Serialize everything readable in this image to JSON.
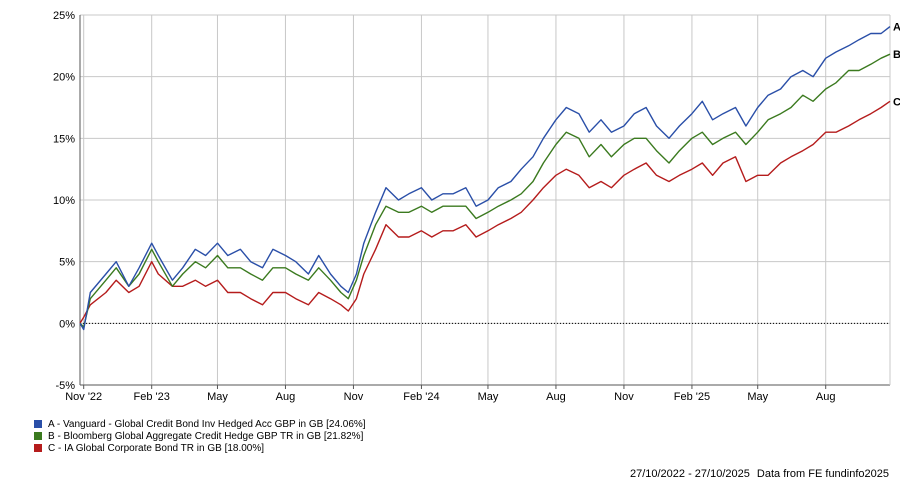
{
  "colors": {
    "A": "#2a4fa8",
    "B": "#3b7a1f",
    "C": "#b51c1c",
    "grid": "#c8c8c8",
    "axis": "#555555"
  },
  "legend": [
    {
      "key": "A",
      "label": "A - Vanguard - Global Credit Bond Inv Hedged Acc GBP in GB [24.06%]"
    },
    {
      "key": "B",
      "label": "B - Bloomberg Global Aggregate Credit Hedge GBP TR in GB [21.82%]"
    },
    {
      "key": "C",
      "label": "C - IA Global Corporate Bond TR in GB [18.00%]"
    }
  ],
  "footer": {
    "range": "27/10/2022 - 27/10/2025",
    "source": "Data from FE fundinfo2025"
  },
  "chart_data": {
    "type": "line",
    "ylim": [
      -5,
      25
    ],
    "yticks": [
      "25%",
      "20%",
      "15%",
      "10%",
      "5%",
      "0%",
      "-5%"
    ],
    "ytick_values": [
      25,
      20,
      15,
      10,
      5,
      0,
      -5
    ],
    "xlim": [
      "2022-10-27",
      "2025-10-27"
    ],
    "xticks": [
      {
        "label": "Nov '22",
        "date": "2022-11-01"
      },
      {
        "label": "Feb '23",
        "date": "2023-02-01"
      },
      {
        "label": "May",
        "date": "2023-05-01"
      },
      {
        "label": "Aug",
        "date": "2023-08-01"
      },
      {
        "label": "Nov",
        "date": "2023-11-01"
      },
      {
        "label": "Feb '24",
        "date": "2024-02-01"
      },
      {
        "label": "May",
        "date": "2024-05-01"
      },
      {
        "label": "Aug",
        "date": "2024-08-01"
      },
      {
        "label": "Nov",
        "date": "2024-11-01"
      },
      {
        "label": "Feb '25",
        "date": "2025-02-01"
      },
      {
        "label": "May",
        "date": "2025-05-01"
      },
      {
        "label": "Aug",
        "date": "2025-08-01"
      }
    ],
    "zero_line": true,
    "grid": true,
    "series": [
      {
        "name": "A",
        "end_label": "A",
        "color": "#2a4fa8",
        "points": [
          [
            "2022-10-27",
            0
          ],
          [
            "2022-11-01",
            -0.5
          ],
          [
            "2022-11-10",
            2.5
          ],
          [
            "2022-12-01",
            4
          ],
          [
            "2022-12-15",
            5
          ],
          [
            "2023-01-01",
            3
          ],
          [
            "2023-01-15",
            4.5
          ],
          [
            "2023-02-01",
            6.5
          ],
          [
            "2023-02-10",
            5.5
          ],
          [
            "2023-03-01",
            3.5
          ],
          [
            "2023-03-15",
            4.5
          ],
          [
            "2023-04-01",
            6
          ],
          [
            "2023-04-15",
            5.5
          ],
          [
            "2023-05-01",
            6.5
          ],
          [
            "2023-05-15",
            5.5
          ],
          [
            "2023-06-01",
            6
          ],
          [
            "2023-06-15",
            5
          ],
          [
            "2023-07-01",
            4.5
          ],
          [
            "2023-07-15",
            6
          ],
          [
            "2023-08-01",
            5.5
          ],
          [
            "2023-08-15",
            5
          ],
          [
            "2023-09-01",
            4
          ],
          [
            "2023-09-15",
            5.5
          ],
          [
            "2023-10-01",
            4
          ],
          [
            "2023-10-15",
            3
          ],
          [
            "2023-10-25",
            2.5
          ],
          [
            "2023-11-05",
            4
          ],
          [
            "2023-11-15",
            6.5
          ],
          [
            "2023-12-01",
            9
          ],
          [
            "2023-12-15",
            11
          ],
          [
            "2024-01-01",
            10
          ],
          [
            "2024-01-15",
            10.5
          ],
          [
            "2024-02-01",
            11
          ],
          [
            "2024-02-15",
            10
          ],
          [
            "2024-03-01",
            10.5
          ],
          [
            "2024-03-15",
            10.5
          ],
          [
            "2024-04-01",
            11
          ],
          [
            "2024-04-15",
            9.5
          ],
          [
            "2024-05-01",
            10
          ],
          [
            "2024-05-15",
            11
          ],
          [
            "2024-06-01",
            11.5
          ],
          [
            "2024-06-15",
            12.5
          ],
          [
            "2024-07-01",
            13.5
          ],
          [
            "2024-07-15",
            15
          ],
          [
            "2024-08-01",
            16.5
          ],
          [
            "2024-08-15",
            17.5
          ],
          [
            "2024-09-01",
            17
          ],
          [
            "2024-09-15",
            15.5
          ],
          [
            "2024-10-01",
            16.5
          ],
          [
            "2024-10-15",
            15.5
          ],
          [
            "2024-11-01",
            16
          ],
          [
            "2024-11-15",
            17
          ],
          [
            "2024-12-01",
            17.5
          ],
          [
            "2024-12-15",
            16
          ],
          [
            "2025-01-01",
            15
          ],
          [
            "2025-01-15",
            16
          ],
          [
            "2025-02-01",
            17
          ],
          [
            "2025-02-15",
            18
          ],
          [
            "2025-03-01",
            16.5
          ],
          [
            "2025-03-15",
            17
          ],
          [
            "2025-04-01",
            17.5
          ],
          [
            "2025-04-15",
            16
          ],
          [
            "2025-05-01",
            17.5
          ],
          [
            "2025-05-15",
            18.5
          ],
          [
            "2025-06-01",
            19
          ],
          [
            "2025-06-15",
            20
          ],
          [
            "2025-07-01",
            20.5
          ],
          [
            "2025-07-15",
            20
          ],
          [
            "2025-08-01",
            21.5
          ],
          [
            "2025-08-15",
            22
          ],
          [
            "2025-09-01",
            22.5
          ],
          [
            "2025-09-15",
            23
          ],
          [
            "2025-10-01",
            23.5
          ],
          [
            "2025-10-15",
            23.5
          ],
          [
            "2025-10-27",
            24.06
          ]
        ]
      },
      {
        "name": "B",
        "end_label": "B",
        "color": "#3b7a1f",
        "points": [
          [
            "2022-10-27",
            0
          ],
          [
            "2022-11-01",
            -0.3
          ],
          [
            "2022-11-10",
            2
          ],
          [
            "2022-12-01",
            3.5
          ],
          [
            "2022-12-15",
            4.5
          ],
          [
            "2023-01-01",
            3
          ],
          [
            "2023-01-15",
            4
          ],
          [
            "2023-02-01",
            6
          ],
          [
            "2023-02-10",
            5
          ],
          [
            "2023-03-01",
            3
          ],
          [
            "2023-03-15",
            4
          ],
          [
            "2023-04-01",
            5
          ],
          [
            "2023-04-15",
            4.5
          ],
          [
            "2023-05-01",
            5.5
          ],
          [
            "2023-05-15",
            4.5
          ],
          [
            "2023-06-01",
            4.5
          ],
          [
            "2023-06-15",
            4
          ],
          [
            "2023-07-01",
            3.5
          ],
          [
            "2023-07-15",
            4.5
          ],
          [
            "2023-08-01",
            4.5
          ],
          [
            "2023-08-15",
            4
          ],
          [
            "2023-09-01",
            3.5
          ],
          [
            "2023-09-15",
            4.5
          ],
          [
            "2023-10-01",
            3.5
          ],
          [
            "2023-10-15",
            2.5
          ],
          [
            "2023-10-25",
            2
          ],
          [
            "2023-11-05",
            3.5
          ],
          [
            "2023-11-15",
            5.5
          ],
          [
            "2023-12-01",
            8
          ],
          [
            "2023-12-15",
            9.5
          ],
          [
            "2024-01-01",
            9
          ],
          [
            "2024-01-15",
            9
          ],
          [
            "2024-02-01",
            9.5
          ],
          [
            "2024-02-15",
            9
          ],
          [
            "2024-03-01",
            9.5
          ],
          [
            "2024-03-15",
            9.5
          ],
          [
            "2024-04-01",
            9.5
          ],
          [
            "2024-04-15",
            8.5
          ],
          [
            "2024-05-01",
            9
          ],
          [
            "2024-05-15",
            9.5
          ],
          [
            "2024-06-01",
            10
          ],
          [
            "2024-06-15",
            10.5
          ],
          [
            "2024-07-01",
            11.5
          ],
          [
            "2024-07-15",
            13
          ],
          [
            "2024-08-01",
            14.5
          ],
          [
            "2024-08-15",
            15.5
          ],
          [
            "2024-09-01",
            15
          ],
          [
            "2024-09-15",
            13.5
          ],
          [
            "2024-10-01",
            14.5
          ],
          [
            "2024-10-15",
            13.5
          ],
          [
            "2024-11-01",
            14.5
          ],
          [
            "2024-11-15",
            15
          ],
          [
            "2024-12-01",
            15
          ],
          [
            "2024-12-15",
            14
          ],
          [
            "2025-01-01",
            13
          ],
          [
            "2025-01-15",
            14
          ],
          [
            "2025-02-01",
            15
          ],
          [
            "2025-02-15",
            15.5
          ],
          [
            "2025-03-01",
            14.5
          ],
          [
            "2025-03-15",
            15
          ],
          [
            "2025-04-01",
            15.5
          ],
          [
            "2025-04-15",
            14.5
          ],
          [
            "2025-05-01",
            15.5
          ],
          [
            "2025-05-15",
            16.5
          ],
          [
            "2025-06-01",
            17
          ],
          [
            "2025-06-15",
            17.5
          ],
          [
            "2025-07-01",
            18.5
          ],
          [
            "2025-07-15",
            18
          ],
          [
            "2025-08-01",
            19
          ],
          [
            "2025-08-15",
            19.5
          ],
          [
            "2025-09-01",
            20.5
          ],
          [
            "2025-09-15",
            20.5
          ],
          [
            "2025-10-01",
            21
          ],
          [
            "2025-10-15",
            21.5
          ],
          [
            "2025-10-27",
            21.82
          ]
        ]
      },
      {
        "name": "C",
        "end_label": "C",
        "color": "#b51c1c",
        "points": [
          [
            "2022-10-27",
            0
          ],
          [
            "2022-11-01",
            0.5
          ],
          [
            "2022-11-10",
            1.5
          ],
          [
            "2022-12-01",
            2.5
          ],
          [
            "2022-12-15",
            3.5
          ],
          [
            "2023-01-01",
            2.5
          ],
          [
            "2023-01-15",
            3
          ],
          [
            "2023-02-01",
            5
          ],
          [
            "2023-02-10",
            4
          ],
          [
            "2023-03-01",
            3
          ],
          [
            "2023-03-15",
            3
          ],
          [
            "2023-04-01",
            3.5
          ],
          [
            "2023-04-15",
            3
          ],
          [
            "2023-05-01",
            3.5
          ],
          [
            "2023-05-15",
            2.5
          ],
          [
            "2023-06-01",
            2.5
          ],
          [
            "2023-06-15",
            2
          ],
          [
            "2023-07-01",
            1.5
          ],
          [
            "2023-07-15",
            2.5
          ],
          [
            "2023-08-01",
            2.5
          ],
          [
            "2023-08-15",
            2
          ],
          [
            "2023-09-01",
            1.5
          ],
          [
            "2023-09-15",
            2.5
          ],
          [
            "2023-10-01",
            2
          ],
          [
            "2023-10-15",
            1.5
          ],
          [
            "2023-10-25",
            1
          ],
          [
            "2023-11-05",
            2
          ],
          [
            "2023-11-15",
            4
          ],
          [
            "2023-12-01",
            6
          ],
          [
            "2023-12-15",
            8
          ],
          [
            "2024-01-01",
            7
          ],
          [
            "2024-01-15",
            7
          ],
          [
            "2024-02-01",
            7.5
          ],
          [
            "2024-02-15",
            7
          ],
          [
            "2024-03-01",
            7.5
          ],
          [
            "2024-03-15",
            7.5
          ],
          [
            "2024-04-01",
            8
          ],
          [
            "2024-04-15",
            7
          ],
          [
            "2024-05-01",
            7.5
          ],
          [
            "2024-05-15",
            8
          ],
          [
            "2024-06-01",
            8.5
          ],
          [
            "2024-06-15",
            9
          ],
          [
            "2024-07-01",
            10
          ],
          [
            "2024-07-15",
            11
          ],
          [
            "2024-08-01",
            12
          ],
          [
            "2024-08-15",
            12.5
          ],
          [
            "2024-09-01",
            12
          ],
          [
            "2024-09-15",
            11
          ],
          [
            "2024-10-01",
            11.5
          ],
          [
            "2024-10-15",
            11
          ],
          [
            "2024-11-01",
            12
          ],
          [
            "2024-11-15",
            12.5
          ],
          [
            "2024-12-01",
            13
          ],
          [
            "2024-12-15",
            12
          ],
          [
            "2025-01-01",
            11.5
          ],
          [
            "2025-01-15",
            12
          ],
          [
            "2025-02-01",
            12.5
          ],
          [
            "2025-02-15",
            13
          ],
          [
            "2025-03-01",
            12
          ],
          [
            "2025-03-15",
            13
          ],
          [
            "2025-04-01",
            13.5
          ],
          [
            "2025-04-15",
            11.5
          ],
          [
            "2025-05-01",
            12
          ],
          [
            "2025-05-15",
            12
          ],
          [
            "2025-06-01",
            13
          ],
          [
            "2025-06-15",
            13.5
          ],
          [
            "2025-07-01",
            14
          ],
          [
            "2025-07-15",
            14.5
          ],
          [
            "2025-08-01",
            15.5
          ],
          [
            "2025-08-15",
            15.5
          ],
          [
            "2025-09-01",
            16
          ],
          [
            "2025-09-15",
            16.5
          ],
          [
            "2025-10-01",
            17
          ],
          [
            "2025-10-15",
            17.5
          ],
          [
            "2025-10-27",
            18
          ]
        ]
      }
    ]
  }
}
